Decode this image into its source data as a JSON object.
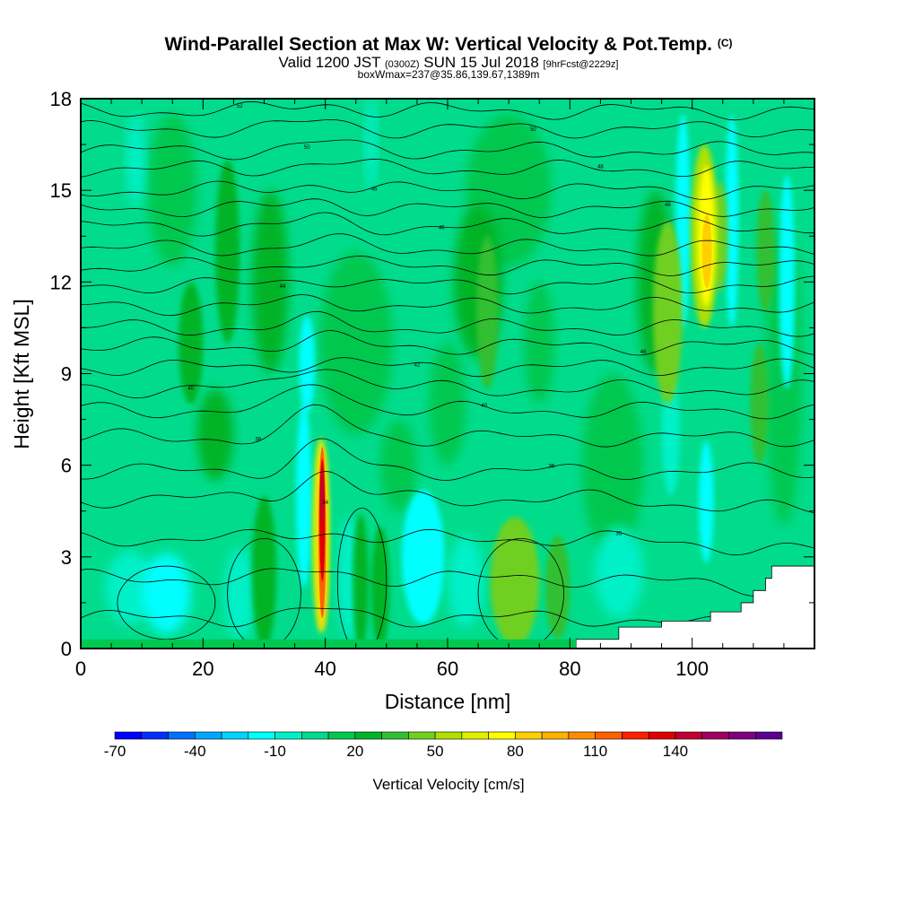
{
  "header": {
    "title": "Wind-Parallel Section at Max W: Vertical Velocity & Pot.Temp.",
    "copyright": "(C)",
    "valid_prefix": "Valid 1200 JST",
    "valid_utc": "(0300Z)",
    "valid_date": "SUN 15 Jul 2018",
    "forecast_info": "[9hrFcst@2229z]",
    "boxwmax": "boxWmax=237@35.86,139.67,1389m"
  },
  "chart_data": {
    "type": "heatmap",
    "xlabel": "Distance [nm]",
    "ylabel": "Height [Kft MSL]",
    "xlim": [
      0,
      120
    ],
    "ylim": [
      0,
      18
    ],
    "x_ticks": [
      0,
      20,
      40,
      60,
      80,
      100
    ],
    "y_ticks": [
      0,
      3,
      6,
      9,
      12,
      15,
      18
    ],
    "field": "Vertical Velocity",
    "updraft_max": {
      "distance_nm": 40,
      "height_kft_range": [
        0.5,
        6.8
      ],
      "max_cm_s": 120
    },
    "upper_updraft": {
      "distance_nm": 102,
      "height_kft_range": [
        11,
        16
      ],
      "max_cm_s": 55
    },
    "terrain_mask": [
      [
        81,
        0.3
      ],
      [
        88,
        0.7
      ],
      [
        95,
        0.9
      ],
      [
        103,
        1.2
      ],
      [
        108,
        1.5
      ],
      [
        110,
        1.9
      ],
      [
        112,
        2.3
      ],
      [
        113,
        2.7
      ]
    ],
    "colorbar": {
      "title": "Vertical Velocity [cm/s]",
      "tick_labels": [
        "-70",
        "-40",
        "-10",
        "20",
        "50",
        "80",
        "110",
        "140"
      ],
      "colors": [
        "#0000ff",
        "#0030ff",
        "#0070ff",
        "#00a8ff",
        "#00d4ff",
        "#00ffff",
        "#00f0c8",
        "#00dc8c",
        "#00c850",
        "#00b428",
        "#30c030",
        "#70d020",
        "#b0e000",
        "#e0f000",
        "#ffff00",
        "#ffd000",
        "#ffb000",
        "#ff8c00",
        "#ff6000",
        "#ff2000",
        "#e00000",
        "#c00030",
        "#a00060",
        "#800080",
        "#5a0090"
      ]
    },
    "theta_contours": [
      {
        "kft": 1.0,
        "label": ""
      },
      {
        "kft": 2.3,
        "label": ""
      },
      {
        "kft": 3.6,
        "label": "35"
      },
      {
        "kft": 4.9,
        "label": "34"
      },
      {
        "kft": 5.8,
        "label": "36"
      },
      {
        "kft": 6.9,
        "label": "38"
      },
      {
        "kft": 7.8,
        "label": "40"
      },
      {
        "kft": 8.5,
        "label": "40"
      },
      {
        "kft": 9.2,
        "label": "42"
      },
      {
        "kft": 9.9,
        "label": "46"
      },
      {
        "kft": 10.5,
        "label": ""
      },
      {
        "kft": 11.2,
        "label": ""
      },
      {
        "kft": 11.9,
        "label": "44"
      },
      {
        "kft": 12.5,
        "label": ""
      },
      {
        "kft": 13.1,
        "label": ""
      },
      {
        "kft": 13.8,
        "label": "46"
      },
      {
        "kft": 14.4,
        "label": "48"
      },
      {
        "kft": 15.0,
        "label": "46"
      },
      {
        "kft": 15.7,
        "label": "48"
      },
      {
        "kft": 16.3,
        "label": "50"
      },
      {
        "kft": 17.0,
        "label": "50"
      },
      {
        "kft": 17.6,
        "label": "52"
      }
    ]
  }
}
